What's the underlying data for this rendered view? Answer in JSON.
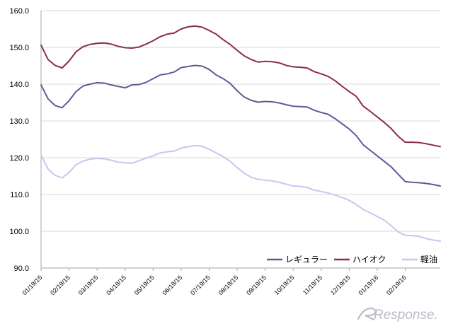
{
  "chart_data": {
    "type": "line",
    "title": "",
    "xlabel": "",
    "ylabel": "",
    "ylim": [
      90,
      160
    ],
    "yticks": [
      "90.0",
      "100.0",
      "110.0",
      "120.0",
      "130.0",
      "140.0",
      "150.0",
      "160.0"
    ],
    "ytick_values": [
      90,
      100,
      110,
      120,
      130,
      140,
      150,
      160
    ],
    "grid": true,
    "legend_position": "bottom-right",
    "x_tick_labels": [
      "01/19/15",
      "02/19/15",
      "03/19/15",
      "04/19/15",
      "05/19/15",
      "06/19/15",
      "07/19/15",
      "08/19/15",
      "09/19/15",
      "10/19/15",
      "11/19/15",
      "12/19/15",
      "01/19/16",
      "02/19/16"
    ],
    "x_tick_positions": [
      0,
      4,
      8,
      12,
      16,
      20,
      24,
      28,
      32,
      36,
      40,
      44,
      48,
      52
    ],
    "series": [
      {
        "name": "レギュラー",
        "color": "#5b5b99",
        "values": [
          139.8,
          136.0,
          134.2,
          133.6,
          135.5,
          138.0,
          139.5,
          140.0,
          140.4,
          140.3,
          139.8,
          139.4,
          139.0,
          139.8,
          139.9,
          140.5,
          141.5,
          142.5,
          142.8,
          143.3,
          144.5,
          144.8,
          145.1,
          144.9,
          144.0,
          142.5,
          141.5,
          140.2,
          138.2,
          136.5,
          135.6,
          135.1,
          135.3,
          135.2,
          134.9,
          134.4,
          134.0,
          133.9,
          133.8,
          132.9,
          132.3,
          131.8,
          130.6,
          129.2,
          127.8,
          126.0,
          123.5,
          122.0,
          120.5,
          119.0,
          117.5,
          115.5,
          113.5,
          113.3,
          113.2,
          113.0,
          112.7,
          112.3
        ]
      },
      {
        "name": "ハイオク",
        "color": "#8c2a52",
        "values": [
          150.6,
          146.7,
          145.1,
          144.4,
          146.3,
          148.8,
          150.2,
          150.8,
          151.1,
          151.2,
          150.9,
          150.3,
          149.9,
          149.8,
          150.1,
          150.9,
          151.8,
          152.9,
          153.6,
          153.9,
          155.0,
          155.6,
          155.8,
          155.5,
          154.6,
          153.6,
          152.1,
          150.8,
          149.2,
          147.7,
          146.7,
          146.0,
          146.2,
          146.1,
          145.8,
          145.1,
          144.7,
          144.6,
          144.4,
          143.4,
          142.8,
          142.1,
          140.9,
          139.4,
          138.0,
          136.7,
          134.0,
          132.6,
          131.1,
          129.6,
          127.9,
          125.8,
          124.2,
          124.2,
          124.1,
          123.8,
          123.4,
          123.0
        ]
      },
      {
        "name": "軽油",
        "color": "#c7c7ef",
        "values": [
          120.7,
          116.9,
          115.2,
          114.5,
          116.0,
          118.1,
          119.1,
          119.6,
          119.8,
          119.7,
          119.3,
          118.8,
          118.6,
          118.5,
          119.2,
          119.9,
          120.5,
          121.3,
          121.6,
          121.8,
          122.6,
          123.0,
          123.3,
          123.1,
          122.3,
          121.3,
          120.3,
          119.0,
          117.3,
          115.8,
          114.7,
          114.1,
          113.9,
          113.7,
          113.3,
          112.8,
          112.3,
          112.2,
          111.9,
          111.2,
          110.8,
          110.4,
          109.8,
          109.2,
          108.4,
          107.3,
          105.9,
          105.0,
          104.0,
          103.0,
          101.5,
          99.8,
          98.9,
          98.8,
          98.6,
          98.0,
          97.6,
          97.3
        ]
      }
    ]
  },
  "watermark": {
    "text": "Response."
  }
}
